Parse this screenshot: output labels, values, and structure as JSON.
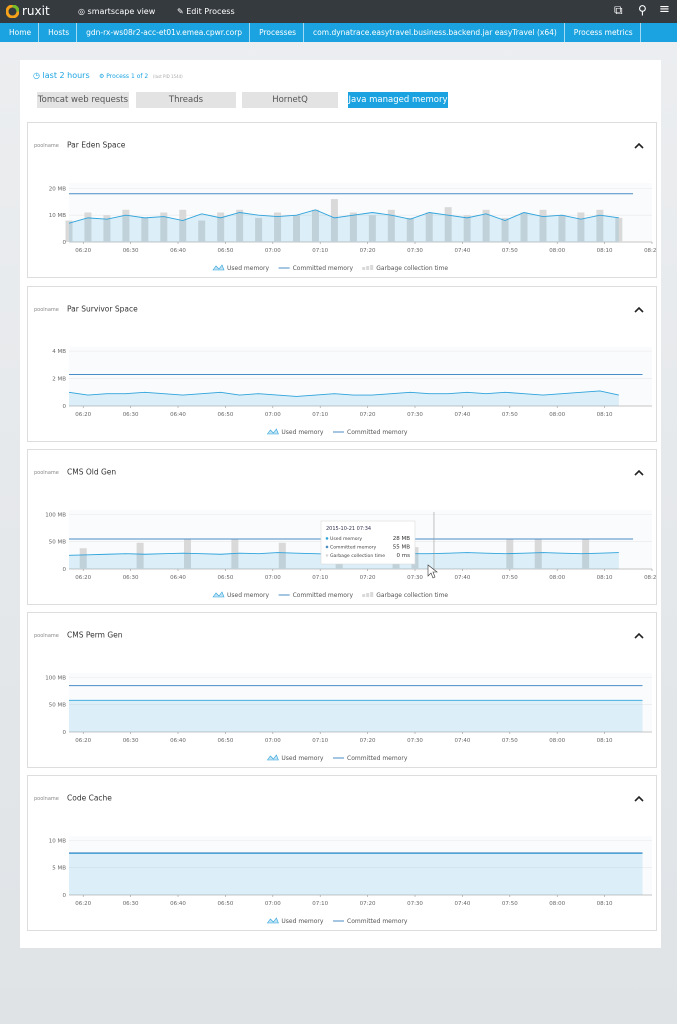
{
  "header": {
    "logo": "ruxit",
    "nav": [
      "smartscape view",
      "Edit Process"
    ]
  },
  "breadcrumbs": [
    "Home",
    "Hosts",
    "gdn-rx-ws08r2-acc-et01v.emea.cpwr.corp",
    "Processes",
    "com.dynatrace.easytravel.business.backend.jar easyTravel (x64)",
    "Process metrics"
  ],
  "toolbar": {
    "timeframe": "last 2 hours",
    "process": "Process 1 of 2",
    "pid": "(last PID 1544)"
  },
  "tabs": [
    "Tomcat web requests",
    "Threads",
    "HornetQ",
    "Java managed memory"
  ],
  "active_tab": 3,
  "chart_data": [
    {
      "type": "line",
      "label": "poolname",
      "title": "Par Eden Space",
      "x": [
        "06:17",
        "06:21",
        "06:25",
        "06:29",
        "06:33",
        "06:37",
        "06:41",
        "06:45",
        "06:49",
        "06:53",
        "06:57",
        "07:01",
        "07:05",
        "07:09",
        "07:13",
        "07:17",
        "07:21",
        "07:25",
        "07:29",
        "07:33",
        "07:37",
        "07:41",
        "07:45",
        "07:49",
        "07:53",
        "07:57",
        "08:01",
        "08:05",
        "08:09",
        "08:13"
      ],
      "xlim": [
        "06:17",
        "08:20"
      ],
      "xticks": [
        "06:20",
        "06:30",
        "06:40",
        "06:50",
        "07:00",
        "07:10",
        "07:20",
        "07:30",
        "07:40",
        "07:50",
        "08:00",
        "08:10",
        "08:20"
      ],
      "ylim": [
        0,
        22
      ],
      "yticks": [
        0,
        {
          "value": 10,
          "label": "10 MB"
        },
        {
          "value": 20,
          "label": "20 MB"
        }
      ],
      "grid": true,
      "series": [
        {
          "name": "Garbage collection time",
          "type": "bar",
          "color": "#d9d9d9",
          "values": [
            8,
            11,
            10,
            12,
            9,
            11,
            12,
            8,
            11,
            12,
            9,
            11,
            10,
            12,
            16,
            11,
            10,
            12,
            9,
            11,
            13,
            10,
            12,
            9,
            11,
            12,
            10,
            11,
            12,
            9
          ]
        },
        {
          "name": "Used memory",
          "type": "area",
          "color": "#2ea3dc",
          "values": [
            7,
            9,
            8.5,
            10,
            9,
            9.5,
            8,
            10.5,
            9,
            11,
            10,
            9.5,
            10,
            12,
            9,
            10,
            11,
            10,
            8.5,
            11,
            10,
            9,
            10.5,
            8,
            11,
            9.5,
            10,
            8.5,
            10,
            9
          ]
        },
        {
          "name": "Committed memory",
          "type": "line",
          "color": "#4a8cc6",
          "x": [
            "06:17",
            "08:16"
          ],
          "values": [
            18,
            18
          ]
        }
      ]
    },
    {
      "type": "line",
      "label": "poolname",
      "title": "Par Survivor Space",
      "x": [
        "06:17",
        "06:21",
        "06:25",
        "06:29",
        "06:33",
        "06:37",
        "06:41",
        "06:45",
        "06:49",
        "06:53",
        "06:57",
        "07:01",
        "07:05",
        "07:09",
        "07:13",
        "07:17",
        "07:21",
        "07:25",
        "07:29",
        "07:33",
        "07:37",
        "07:41",
        "07:45",
        "07:49",
        "07:53",
        "07:57",
        "08:01",
        "08:05",
        "08:09",
        "08:13"
      ],
      "xlim": [
        "06:17",
        "08:20"
      ],
      "xticks": [
        "06:20",
        "06:30",
        "06:40",
        "06:50",
        "07:00",
        "07:10",
        "07:20",
        "07:30",
        "07:40",
        "07:50",
        "08:00",
        "08:10"
      ],
      "ylim": [
        0,
        4.3
      ],
      "yticks": [
        0,
        {
          "value": 2,
          "label": "2 MB"
        },
        {
          "value": 4,
          "label": "4 MB"
        }
      ],
      "grid": true,
      "series": [
        {
          "name": "Used memory",
          "type": "area",
          "color": "#2ea3dc",
          "values": [
            1.0,
            0.8,
            0.9,
            0.9,
            1.0,
            0.9,
            0.8,
            0.9,
            1.0,
            0.8,
            0.9,
            0.8,
            0.7,
            0.8,
            0.9,
            0.8,
            0.8,
            0.9,
            1.0,
            0.9,
            0.9,
            1.0,
            0.9,
            1.0,
            0.9,
            0.8,
            0.9,
            1.0,
            1.1,
            0.8
          ]
        },
        {
          "name": "Committed memory",
          "type": "line",
          "color": "#4a8cc6",
          "x": [
            "06:17",
            "08:18"
          ],
          "values": [
            2.3,
            2.3
          ]
        }
      ]
    },
    {
      "type": "line",
      "label": "poolname",
      "title": "CMS Old Gen",
      "x": [
        "06:17",
        "06:21",
        "06:25",
        "06:29",
        "06:33",
        "06:37",
        "06:41",
        "06:45",
        "06:49",
        "06:53",
        "06:57",
        "07:01",
        "07:05",
        "07:09",
        "07:13",
        "07:17",
        "07:21",
        "07:25",
        "07:29",
        "07:33",
        "07:37",
        "07:41",
        "07:45",
        "07:49",
        "07:53",
        "07:57",
        "08:01",
        "08:05",
        "08:09",
        "08:13"
      ],
      "xlim": [
        "06:17",
        "08:20"
      ],
      "xticks": [
        "06:20",
        "06:30",
        "06:40",
        "06:50",
        "07:00",
        "07:10",
        "07:20",
        "07:30",
        "07:40",
        "07:50",
        "08:00",
        "08:10",
        "08:20"
      ],
      "ylim": [
        0,
        108
      ],
      "yticks": [
        0,
        {
          "value": 50,
          "label": "50 MB"
        },
        {
          "value": 100,
          "label": "100 MB"
        }
      ],
      "grid": true,
      "series": [
        {
          "name": "Garbage collection time",
          "type": "bar",
          "color": "#d9d9d9",
          "x": [
            "06:20",
            "06:32",
            "06:42",
            "06:52",
            "07:02",
            "07:14",
            "07:26",
            "07:30",
            "07:50",
            "07:56",
            "08:06"
          ],
          "values": [
            38,
            48,
            55,
            55,
            48,
            40,
            42,
            40,
            55,
            55,
            55
          ]
        },
        {
          "name": "Used memory",
          "type": "area",
          "color": "#2ea3dc",
          "values": [
            25,
            26,
            27,
            28,
            27,
            28,
            29,
            28,
            27,
            29,
            28,
            30,
            29,
            28,
            27,
            28,
            30,
            29,
            28,
            28,
            29,
            30,
            29,
            28,
            29,
            30,
            29,
            28,
            29,
            30
          ]
        },
        {
          "name": "Committed memory",
          "type": "line",
          "color": "#4a8cc6",
          "x": [
            "06:17",
            "08:16"
          ],
          "values": [
            55,
            55
          ]
        }
      ],
      "tooltip": {
        "title": "2015-10-21 07:34",
        "rows": [
          {
            "label": "Used memory",
            "value": "28 MB"
          },
          {
            "label": "Committed memory",
            "value": "55 MB"
          },
          {
            "label": "Garbage collection time",
            "value": "0 ms"
          }
        ]
      }
    },
    {
      "type": "line",
      "label": "poolname",
      "title": "CMS Perm Gen",
      "x": [
        "06:17",
        "08:18"
      ],
      "xlim": [
        "06:17",
        "08:20"
      ],
      "xticks": [
        "06:20",
        "06:30",
        "06:40",
        "06:50",
        "07:00",
        "07:10",
        "07:20",
        "07:30",
        "07:40",
        "07:50",
        "08:00",
        "08:10"
      ],
      "ylim": [
        0,
        108
      ],
      "yticks": [
        0,
        {
          "value": 50,
          "label": "50 MB"
        },
        {
          "value": 100,
          "label": "100 MB"
        }
      ],
      "grid": true,
      "series": [
        {
          "name": "Used memory",
          "type": "area",
          "color": "#2ea3dc",
          "values": [
            58,
            58
          ]
        },
        {
          "name": "Committed memory",
          "type": "line",
          "color": "#4a8cc6",
          "values": [
            85,
            85
          ]
        }
      ]
    },
    {
      "type": "line",
      "label": "poolname",
      "title": "Code Cache",
      "x": [
        "06:17",
        "08:18"
      ],
      "xlim": [
        "06:17",
        "08:20"
      ],
      "xticks": [
        "06:20",
        "06:30",
        "06:40",
        "06:50",
        "07:00",
        "07:10",
        "07:20",
        "07:30",
        "07:40",
        "07:50",
        "08:00",
        "08:10"
      ],
      "ylim": [
        0,
        10.8
      ],
      "yticks": [
        0,
        {
          "value": 5,
          "label": "5 MB"
        },
        {
          "value": 10,
          "label": "10 MB"
        }
      ],
      "grid": true,
      "series": [
        {
          "name": "Used memory",
          "type": "area",
          "color": "#2ea3dc",
          "values": [
            7.6,
            7.6
          ]
        },
        {
          "name": "Committed memory",
          "type": "line",
          "color": "#4a8cc6",
          "values": [
            7.7,
            7.7
          ]
        }
      ]
    }
  ]
}
